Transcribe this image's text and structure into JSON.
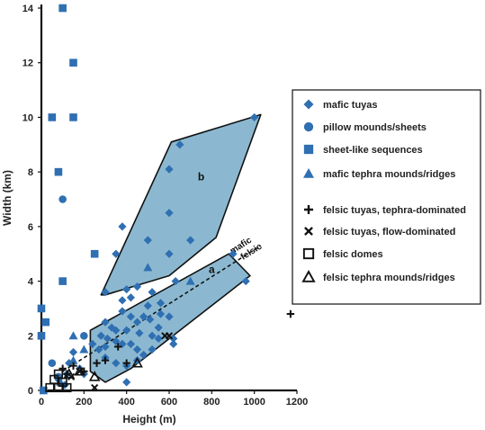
{
  "chart_data": {
    "type": "scatter",
    "xlabel": "Height (m)",
    "ylabel": "Width (km)",
    "xlim": [
      0,
      1200
    ],
    "ylim": [
      0,
      14
    ],
    "x_ticks": [
      "0",
      "200",
      "400",
      "600",
      "800",
      "1000",
      "1200"
    ],
    "y_ticks": [
      "0",
      "2",
      "4",
      "6",
      "8",
      "10",
      "12",
      "14"
    ],
    "grid": false,
    "legend_position": "right",
    "fill_color": "#8bb8d0",
    "marker_color": "#2f6fb2",
    "regions": [
      {
        "label": "a",
        "polygon": [
          [
            230,
            2.2
          ],
          [
            880,
            5.0
          ],
          [
            980,
            4.2
          ],
          [
            420,
            0.8
          ],
          [
            300,
            0.3
          ],
          [
            230,
            0.7
          ]
        ]
      },
      {
        "label": "b",
        "polygon": [
          [
            280,
            3.5
          ],
          [
            610,
            9.1
          ],
          [
            1030,
            10.1
          ],
          [
            820,
            5.6
          ],
          [
            600,
            4.2
          ],
          [
            300,
            3.5
          ]
        ]
      }
    ],
    "divider": {
      "labels": [
        "mafic",
        "felsic"
      ],
      "from": [
        100,
        0.7
      ],
      "to": [
        1030,
        5.3
      ]
    },
    "annotations": [
      {
        "text": "a",
        "x": 800,
        "y": 4.3
      },
      {
        "text": "b",
        "x": 750,
        "y": 7.7
      }
    ],
    "series": [
      {
        "name": "mafic tuyas",
        "marker": "diamond",
        "points": [
          [
            1000,
            10.0
          ],
          [
            650,
            9.0
          ],
          [
            600,
            8.1
          ],
          [
            300,
            3.6
          ],
          [
            380,
            6.0
          ],
          [
            600,
            6.5
          ],
          [
            700,
            5.5
          ],
          [
            500,
            5.5
          ],
          [
            350,
            5.0
          ],
          [
            600,
            5.0
          ],
          [
            900,
            5.0
          ],
          [
            960,
            4.0
          ],
          [
            630,
            4.0
          ],
          [
            400,
            3.7
          ],
          [
            450,
            3.8
          ],
          [
            520,
            3.6
          ],
          [
            380,
            3.3
          ],
          [
            420,
            3.4
          ],
          [
            500,
            3.1
          ],
          [
            560,
            3.2
          ],
          [
            380,
            2.9
          ],
          [
            420,
            2.7
          ],
          [
            450,
            2.5
          ],
          [
            480,
            2.7
          ],
          [
            510,
            2.6
          ],
          [
            560,
            2.8
          ],
          [
            600,
            2.7
          ],
          [
            300,
            2.5
          ],
          [
            330,
            2.3
          ],
          [
            350,
            2.2
          ],
          [
            400,
            2.2
          ],
          [
            280,
            2.0
          ],
          [
            310,
            1.9
          ],
          [
            350,
            1.8
          ],
          [
            380,
            1.7
          ],
          [
            420,
            1.7
          ],
          [
            460,
            2.1
          ],
          [
            520,
            2.0
          ],
          [
            550,
            2.3
          ],
          [
            620,
            1.9
          ],
          [
            620,
            1.7
          ],
          [
            240,
            1.7
          ],
          [
            270,
            1.5
          ],
          [
            300,
            1.2
          ],
          [
            350,
            1.0
          ],
          [
            400,
            0.9
          ],
          [
            450,
            1.1
          ],
          [
            480,
            1.3
          ],
          [
            520,
            1.5
          ],
          [
            400,
            0.3
          ],
          [
            150,
            1.4
          ],
          [
            130,
            1.0
          ],
          [
            180,
            0.8
          ],
          [
            120,
            0.6
          ],
          [
            80,
            0.4
          ],
          [
            110,
            0.2
          ],
          [
            200,
            0.6
          ],
          [
            300,
            1.6
          ],
          [
            550,
            1.9
          ],
          [
            450,
            1.5
          ]
        ]
      },
      {
        "name": "pillow mounds/sheets",
        "marker": "circle",
        "points": [
          [
            100,
            7.0
          ],
          [
            200,
            2.0
          ],
          [
            80,
            0.5
          ],
          [
            50,
            1.0
          ]
        ]
      },
      {
        "name": "sheet-like sequences",
        "marker": "square",
        "points": [
          [
            100,
            14.0
          ],
          [
            150,
            12.0
          ],
          [
            50,
            10.0
          ],
          [
            150,
            10.0
          ],
          [
            80,
            8.0
          ],
          [
            250,
            5.0
          ],
          [
            100,
            4.0
          ],
          [
            0,
            3.0
          ],
          [
            20,
            2.5
          ],
          [
            0,
            2.0
          ],
          [
            10,
            0.0
          ]
        ]
      },
      {
        "name": "mafic tephra mounds/ridges",
        "marker": "triangle",
        "points": [
          [
            500,
            4.5
          ],
          [
            700,
            4.0
          ],
          [
            150,
            2.0
          ],
          [
            200,
            1.5
          ],
          [
            150,
            1.1
          ],
          [
            90,
            0.3
          ]
        ]
      },
      {
        "name": "felsic tuyas, tephra-dominated",
        "marker": "plus",
        "points": [
          [
            1170,
            2.8
          ],
          [
            360,
            1.6
          ],
          [
            260,
            1.0
          ],
          [
            300,
            1.1
          ],
          [
            400,
            1.0
          ],
          [
            150,
            0.9
          ],
          [
            200,
            0.7
          ],
          [
            100,
            0.8
          ],
          [
            120,
            0.6
          ]
        ]
      },
      {
        "name": "felsic tuyas, flow-dominated",
        "marker": "cross",
        "points": [
          [
            580,
            2.0
          ],
          [
            600,
            2.0
          ],
          [
            250,
            0.1
          ],
          [
            180,
            0.7
          ],
          [
            140,
            0.5
          ]
        ]
      },
      {
        "name": "felsic domes",
        "marker": "open-square",
        "points": [
          [
            80,
            0.6
          ],
          [
            60,
            0.4
          ],
          [
            100,
            0.3
          ],
          [
            80,
            0.1
          ],
          [
            40,
            0.1
          ],
          [
            120,
            0.1
          ]
        ]
      },
      {
        "name": "felsic tephra mounds/ridges",
        "marker": "open-triangle",
        "points": [
          [
            450,
            1.0
          ],
          [
            250,
            0.5
          ],
          [
            180,
            0.7
          ],
          [
            130,
            0.6
          ]
        ]
      }
    ]
  }
}
